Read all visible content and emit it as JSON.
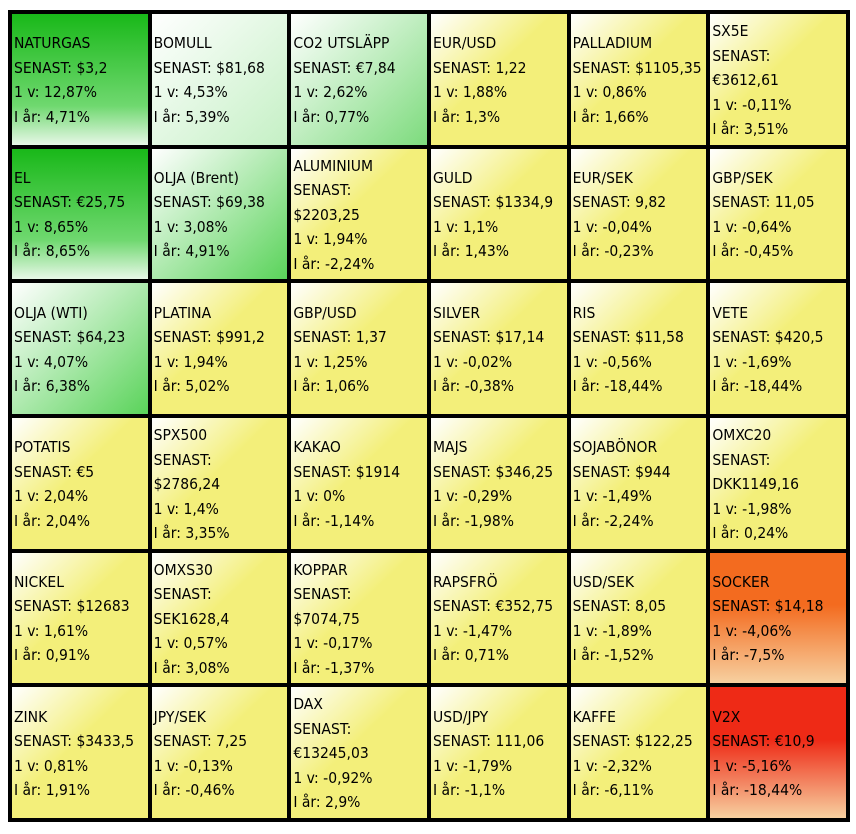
{
  "labels": {
    "latest": "SENAST:",
    "one_week": "1 v:",
    "ytd": "I år:"
  },
  "cells": [
    {
      "name": "NATURGAS",
      "price": "$3,2",
      "week": "12,87%",
      "ytd": "4,71%",
      "bg": "g4"
    },
    {
      "name": "BOMULL",
      "price": "$81,68",
      "week": "4,53%",
      "ytd": "5,39%",
      "bg": "g1"
    },
    {
      "name": "CO2 UTSLÄPP",
      "price": "€7,84",
      "week": "2,62%",
      "ytd": "0,77%",
      "bg": "g2"
    },
    {
      "name": "EUR/USD",
      "price": "1,22",
      "week": "1,88%",
      "ytd": "1,3%",
      "bg": "y"
    },
    {
      "name": "PALLADIUM",
      "price": "$1105,35",
      "week": "0,86%",
      "ytd": "1,66%",
      "bg": "y"
    },
    {
      "name": "SX5E",
      "price": "€3612,61",
      "week": "-0,11%",
      "ytd": "3,51%",
      "bg": "y",
      "split": true
    },
    {
      "name": "EL",
      "price": "€25,75",
      "week": "8,65%",
      "ytd": "8,65%",
      "bg": "g4"
    },
    {
      "name": "OLJA (Brent)",
      "price": "$69,38",
      "week": "3,08%",
      "ytd": "4,91%",
      "bg": "g3"
    },
    {
      "name": "ALUMINIUM",
      "price": "$2203,25",
      "week": "1,94%",
      "ytd": "-2,24%",
      "bg": "y",
      "split": true
    },
    {
      "name": "GULD",
      "price": "$1334,9",
      "week": "1,1%",
      "ytd": "1,43%",
      "bg": "y"
    },
    {
      "name": "EUR/SEK",
      "price": "9,82",
      "week": "-0,04%",
      "ytd": "-0,23%",
      "bg": "y"
    },
    {
      "name": "GBP/SEK",
      "price": "11,05",
      "week": "-0,64%",
      "ytd": "-0,45%",
      "bg": "y"
    },
    {
      "name": "OLJA (WTI)",
      "price": "$64,23",
      "week": "4,07%",
      "ytd": "6,38%",
      "bg": "g3"
    },
    {
      "name": "PLATINA",
      "price": "$991,2",
      "week": "1,94%",
      "ytd": "5,02%",
      "bg": "y"
    },
    {
      "name": "GBP/USD",
      "price": "1,37",
      "week": "1,25%",
      "ytd": "1,06%",
      "bg": "y"
    },
    {
      "name": "SILVER",
      "price": "$17,14",
      "week": "-0,02%",
      "ytd": "-0,38%",
      "bg": "y"
    },
    {
      "name": "RIS",
      "price": "$11,58",
      "week": "-0,56%",
      "ytd": "-18,44%",
      "bg": "y"
    },
    {
      "name": "VETE",
      "price": "$420,5",
      "week": "-1,69%",
      "ytd": "-18,44%",
      "bg": "y"
    },
    {
      "name": "POTATIS",
      "price": "€5",
      "week": "2,04%",
      "ytd": "2,04%",
      "bg": "y"
    },
    {
      "name": "SPX500",
      "price": "$2786,24",
      "week": "1,4%",
      "ytd": "3,35%",
      "bg": "y",
      "split": true
    },
    {
      "name": "KAKAO",
      "price": "$1914",
      "week": "0%",
      "ytd": "-1,14%",
      "bg": "y"
    },
    {
      "name": "MAJS",
      "price": "$346,25",
      "week": "-0,29%",
      "ytd": "-1,98%",
      "bg": "y"
    },
    {
      "name": "SOJABÖNOR",
      "price": "$944",
      "week": "-1,49%",
      "ytd": "-2,24%",
      "bg": "y"
    },
    {
      "name": "OMXC20",
      "price": "DKK1149,16",
      "week": "-1,98%",
      "ytd": "0,24%",
      "bg": "y",
      "split": true
    },
    {
      "name": "NICKEL",
      "price": "$12683",
      "week": "1,61%",
      "ytd": "0,91%",
      "bg": "y"
    },
    {
      "name": "OMXS30",
      "price": "SEK1628,4",
      "week": "0,57%",
      "ytd": "3,08%",
      "bg": "y",
      "split": true
    },
    {
      "name": "KOPPAR",
      "price": "$7074,75",
      "week": "-0,17%",
      "ytd": "-1,37%",
      "bg": "y",
      "split": true
    },
    {
      "name": "RAPSFRÖ",
      "price": "€352,75",
      "week": "-1,47%",
      "ytd": "0,71%",
      "bg": "y"
    },
    {
      "name": "USD/SEK",
      "price": "8,05",
      "week": "-1,89%",
      "ytd": "-1,52%",
      "bg": "y"
    },
    {
      "name": "SOCKER",
      "price": "$14,18",
      "week": "-4,06%",
      "ytd": "-7,5%",
      "bg": "o"
    },
    {
      "name": "ZINK",
      "price": "$3433,5",
      "week": "0,81%",
      "ytd": "1,91%",
      "bg": "y"
    },
    {
      "name": "JPY/SEK",
      "price": "7,25",
      "week": "-0,13%",
      "ytd": "-0,46%",
      "bg": "y"
    },
    {
      "name": "DAX",
      "price": "€13245,03",
      "week": "-0,92%",
      "ytd": "2,9%",
      "bg": "y",
      "split": true
    },
    {
      "name": "USD/JPY",
      "price": "111,06",
      "week": "-1,79%",
      "ytd": "-1,1%",
      "bg": "y"
    },
    {
      "name": "KAFFE",
      "price": "$122,25",
      "week": "-2,32%",
      "ytd": "-6,11%",
      "bg": "y"
    },
    {
      "name": "V2X",
      "price": "€10,9",
      "week": "-5,16%",
      "ytd": "-18,44%",
      "bg": "r"
    }
  ],
  "colors": {
    "g4": [
      "#1fbf1f",
      "#ffffff"
    ],
    "g3": [
      "#4ccd4c",
      "#ffffff"
    ],
    "g2": [
      "#9fe59f",
      "#ffffff"
    ],
    "g1": [
      "#d9f6d9",
      "#ffffff"
    ],
    "y": [
      "#f3ef7a",
      "#ffffff"
    ],
    "o": [
      "#f36b1f",
      "#ffffff"
    ],
    "r": [
      "#ee2a16",
      "#ffffff"
    ]
  }
}
